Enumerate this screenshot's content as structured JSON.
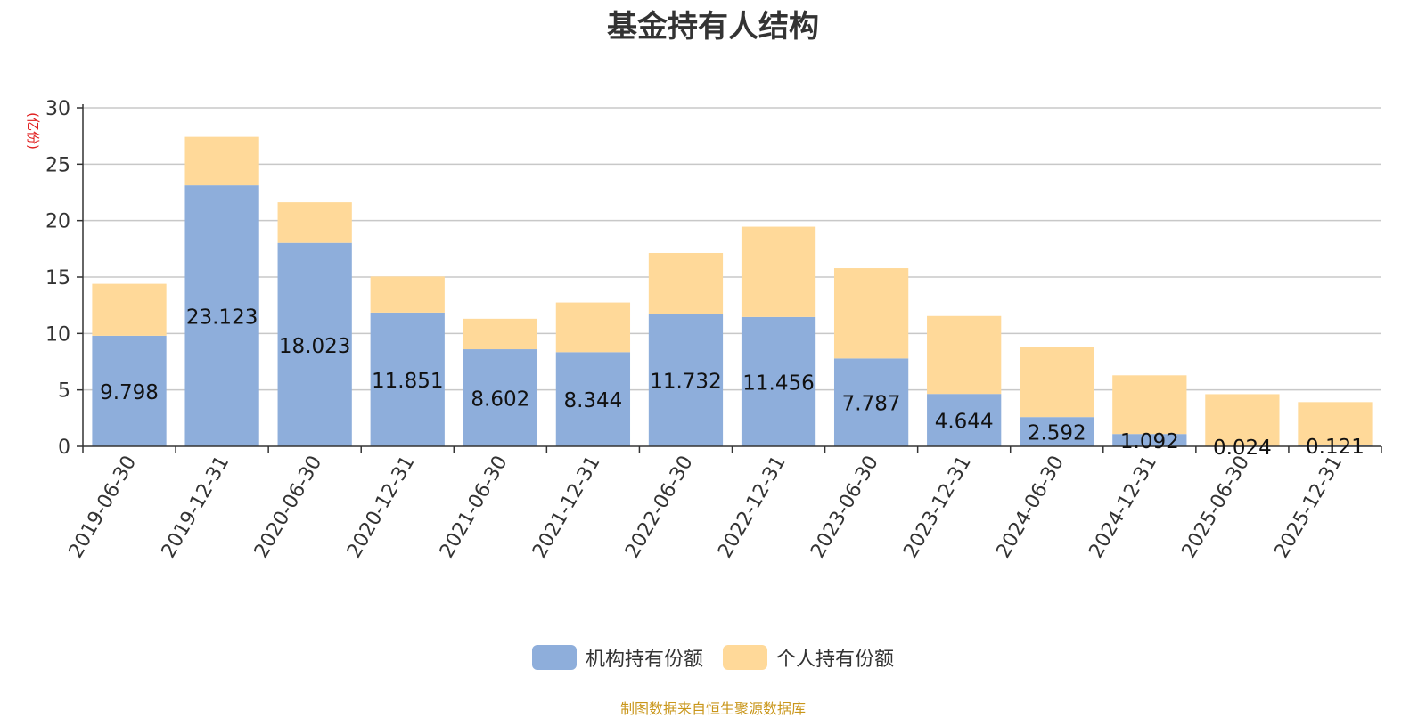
{
  "chart_data": {
    "type": "bar",
    "stacked": true,
    "title": "基金持有人结构",
    "ylabel": "(亿份)",
    "ylim": [
      0,
      30
    ],
    "yticks": [
      0,
      5,
      10,
      15,
      20,
      25,
      30
    ],
    "grid": true,
    "legend_position": "bottom",
    "categories": [
      "2019-06-30",
      "2019-12-31",
      "2020-06-30",
      "2020-12-31",
      "2021-06-30",
      "2021-12-31",
      "2022-06-30",
      "2022-12-31",
      "2023-06-30",
      "2023-12-31",
      "2024-06-30",
      "2024-12-31",
      "2025-06-30",
      "2025-12-31"
    ],
    "series": [
      {
        "name": "机构持有份额",
        "color": "#8eaedb",
        "values": [
          9.798,
          23.123,
          18.023,
          11.851,
          8.602,
          8.344,
          11.732,
          11.456,
          7.787,
          4.644,
          2.592,
          1.092,
          0.024,
          0.121
        ],
        "labels": [
          "9.798",
          "23.123",
          "18.023",
          "11.851",
          "8.602",
          "8.344",
          "11.732",
          "11.456",
          "7.787",
          "4.644",
          "2.592",
          "1.092",
          "0.024",
          "0.121"
        ]
      },
      {
        "name": "个人持有份额",
        "color": "#ffd999",
        "values": [
          4.6,
          4.3,
          3.6,
          3.2,
          2.7,
          4.4,
          5.4,
          8.0,
          8.0,
          6.9,
          6.2,
          5.2,
          4.6,
          3.8
        ]
      }
    ],
    "source": "制图数据来自恒生聚源数据库"
  }
}
